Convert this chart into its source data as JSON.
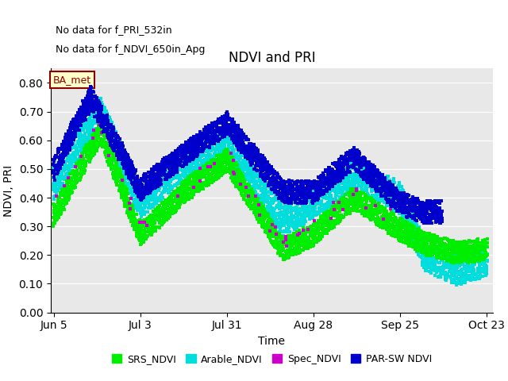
{
  "title": "NDVI and PRI",
  "xlabel": "Time",
  "ylabel": "NDVI, PRI",
  "annotation_lines": [
    "No data for f_PRI_532in",
    "No data for f_NDVI_650in_Apg"
  ],
  "box_label": "BA_met",
  "ylim": [
    0.0,
    0.85
  ],
  "yticks": [
    0.0,
    0.1,
    0.2,
    0.3,
    0.4,
    0.5,
    0.6,
    0.7,
    0.8
  ],
  "xtick_labels": [
    "Jun 5",
    "Jul 3",
    "Jul 31",
    "Aug 28",
    "Sep 25",
    "Oct 23"
  ],
  "series": [
    {
      "name": "SRS_NDVI",
      "color": "#00ee00"
    },
    {
      "name": "Arable_NDVI",
      "color": "#00dddd"
    },
    {
      "name": "Spec_NDVI",
      "color": "#cc00cc"
    },
    {
      "name": "PAR-SW NDVI",
      "color": "#0000cc"
    }
  ],
  "background_color": "#e8e8e8",
  "marker_size": 9
}
